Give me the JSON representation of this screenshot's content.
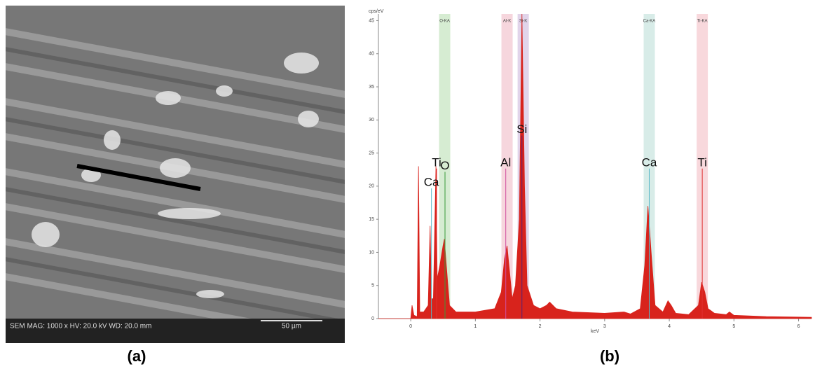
{
  "panels": {
    "a": "(a)",
    "b": "(b)"
  },
  "sem": {
    "info": "SEM  MAG: 1000 x  HV: 20.0 kV  WD: 20.0 mm",
    "scale_bar": "50 µm"
  },
  "chart_data": {
    "type": "area",
    "y_label": "cps/eV",
    "x_label": "keV",
    "color": "#d8231c",
    "xlim": [
      -0.5,
      6.2
    ],
    "ylim": [
      0,
      46
    ],
    "xticks": [
      0,
      1,
      2,
      3,
      4,
      5,
      6
    ],
    "yticks": [
      0,
      5,
      10,
      15,
      20,
      25,
      30,
      35,
      40,
      45
    ],
    "x": [
      -0.5,
      0,
      0.02,
      0.05,
      0.1,
      0.12,
      0.14,
      0.2,
      0.27,
      0.3,
      0.32,
      0.35,
      0.39,
      0.41,
      0.45,
      0.5,
      0.52,
      0.55,
      0.6,
      0.7,
      1.0,
      1.3,
      1.4,
      1.45,
      1.49,
      1.52,
      1.57,
      1.62,
      1.68,
      1.72,
      1.76,
      1.8,
      1.9,
      2.0,
      2.1,
      2.15,
      2.25,
      2.5,
      3.0,
      3.3,
      3.4,
      3.55,
      3.62,
      3.67,
      3.72,
      3.78,
      3.9,
      3.98,
      4.03,
      4.1,
      4.3,
      4.45,
      4.5,
      4.55,
      4.6,
      4.7,
      4.88,
      4.93,
      5.0,
      5.5,
      6.2
    ],
    "values": [
      0,
      0,
      2,
      0.5,
      0.3,
      23,
      1,
      1,
      2,
      14,
      3,
      3,
      23,
      6,
      8,
      11,
      12,
      8,
      2,
      1,
      1,
      1.5,
      4,
      9,
      11,
      8,
      3,
      5,
      15,
      46,
      20,
      5,
      2,
      1.5,
      2,
      2.5,
      1.5,
      1,
      0.8,
      1,
      0.7,
      1.5,
      8,
      17,
      10,
      2,
      1,
      2.7,
      2,
      0.8,
      0.6,
      2,
      5.5,
      4,
      1.5,
      0.8,
      0.6,
      1,
      0.5,
      0.3,
      0.2
    ],
    "line_markers": [
      {
        "label": "O-KA",
        "x": 0.525,
        "color": "#d6ecd2"
      },
      {
        "label": "Al-K",
        "x": 1.49,
        "color": "#f6d6dd"
      },
      {
        "label": "Si-K",
        "x": 1.74,
        "color": "#e1d4ea"
      },
      {
        "label": "Ca-KA",
        "x": 3.69,
        "color": "#d8ece8"
      },
      {
        "label": "Ti-KA",
        "x": 4.51,
        "color": "#f8d8dc"
      }
    ],
    "annotations": [
      {
        "text": "Ti",
        "x": 0.4,
        "y": 23.5,
        "color": "#e03030"
      },
      {
        "text": "O",
        "x": 0.53,
        "y": 23,
        "color": "#3a9a3a"
      },
      {
        "text": "Ca",
        "x": 0.32,
        "y": 20.5,
        "color": "#5ab8c8"
      },
      {
        "text": "Al",
        "x": 1.47,
        "y": 23.5,
        "color": "#d050a0"
      },
      {
        "text": "Si",
        "x": 1.72,
        "y": 28.5,
        "color": "#5a2070"
      },
      {
        "text": "Ca",
        "x": 3.69,
        "y": 23.5,
        "color": "#5ab8c8"
      },
      {
        "text": "Ti",
        "x": 4.51,
        "y": 23.5,
        "color": "#e03030"
      }
    ]
  }
}
